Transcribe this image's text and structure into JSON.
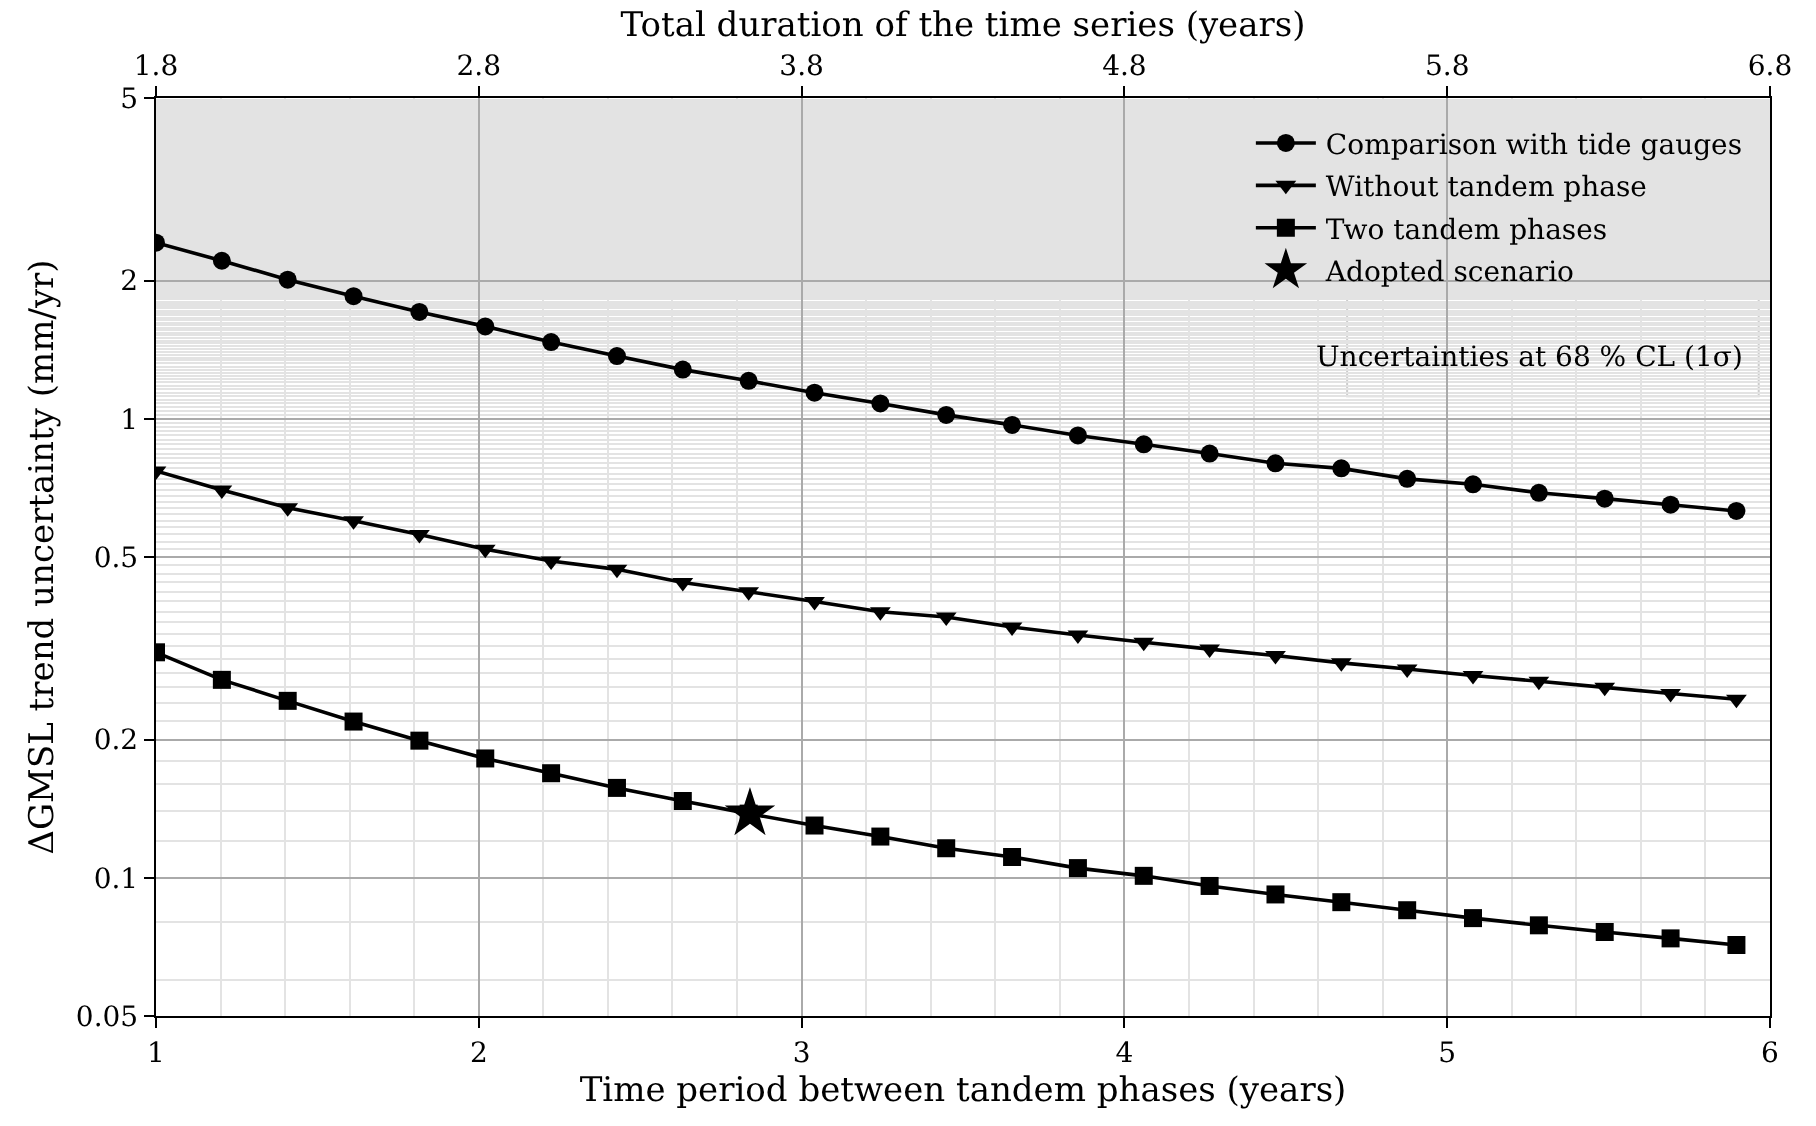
{
  "chart_data": {
    "type": "line",
    "xlabel": "Time period between tandem phases (years)",
    "ylabel": "ΔGMSL trend uncertainty (mm/yr)",
    "x2label": "Total duration of the time series (years)",
    "x": [
      1,
      1.204,
      1.408,
      1.612,
      1.816,
      2.02,
      2.224,
      2.428,
      2.632,
      2.836,
      3.04,
      3.244,
      3.448,
      3.652,
      3.856,
      4.06,
      4.264,
      4.468,
      4.672,
      4.876,
      5.08,
      5.284,
      5.488,
      5.692,
      5.896
    ],
    "series": [
      {
        "name": "Comparison with tide gauges",
        "color": "#000000",
        "marker": "circle",
        "values": [
          2.42,
          2.21,
          2.01,
          1.85,
          1.71,
          1.59,
          1.47,
          1.37,
          1.28,
          1.21,
          1.14,
          1.08,
          1.02,
          0.97,
          0.92,
          0.88,
          0.84,
          0.8,
          0.78,
          0.74,
          0.72,
          0.69,
          0.67,
          0.65,
          0.63
        ]
      },
      {
        "name": "Without tandem phase",
        "color": "#000000",
        "marker": "triangle",
        "values": [
          0.77,
          0.7,
          0.64,
          0.6,
          0.56,
          0.52,
          0.49,
          0.47,
          0.44,
          0.42,
          0.4,
          0.38,
          0.37,
          0.352,
          0.338,
          0.326,
          0.315,
          0.305,
          0.294,
          0.285,
          0.276,
          0.268,
          0.26,
          0.252,
          0.245
        ]
      },
      {
        "name": "Two tandem phases",
        "color": "#000000",
        "marker": "square",
        "values": [
          0.31,
          0.27,
          0.243,
          0.219,
          0.199,
          0.182,
          0.169,
          0.157,
          0.147,
          0.138,
          0.13,
          0.123,
          0.116,
          0.111,
          0.105,
          0.101,
          0.096,
          0.092,
          0.0885,
          0.085,
          0.0817,
          0.0788,
          0.0762,
          0.0738,
          0.0714
        ]
      },
      {
        "name": "Adopted scenario",
        "type": "scatter",
        "color": "#000000",
        "marker": "star",
        "x": [
          2.84
        ],
        "values": [
          0.138
        ]
      }
    ],
    "annotations": [
      "Uncertainties at 68 % CL (1σ)"
    ],
    "log": "y",
    "grid": true,
    "legend": "top right",
    "xlim": [
      1,
      6
    ],
    "xticks": [
      1,
      2,
      3,
      4,
      5,
      6
    ],
    "x2lim": [
      1.8,
      6.8
    ],
    "x2ticks": [
      1.8,
      2.8,
      3.8,
      4.8,
      5.8,
      6.8
    ],
    "ylim": [
      0.05,
      5
    ],
    "yticks": [
      0.05,
      0.1,
      0.2,
      0.5,
      1,
      2,
      5
    ]
  }
}
